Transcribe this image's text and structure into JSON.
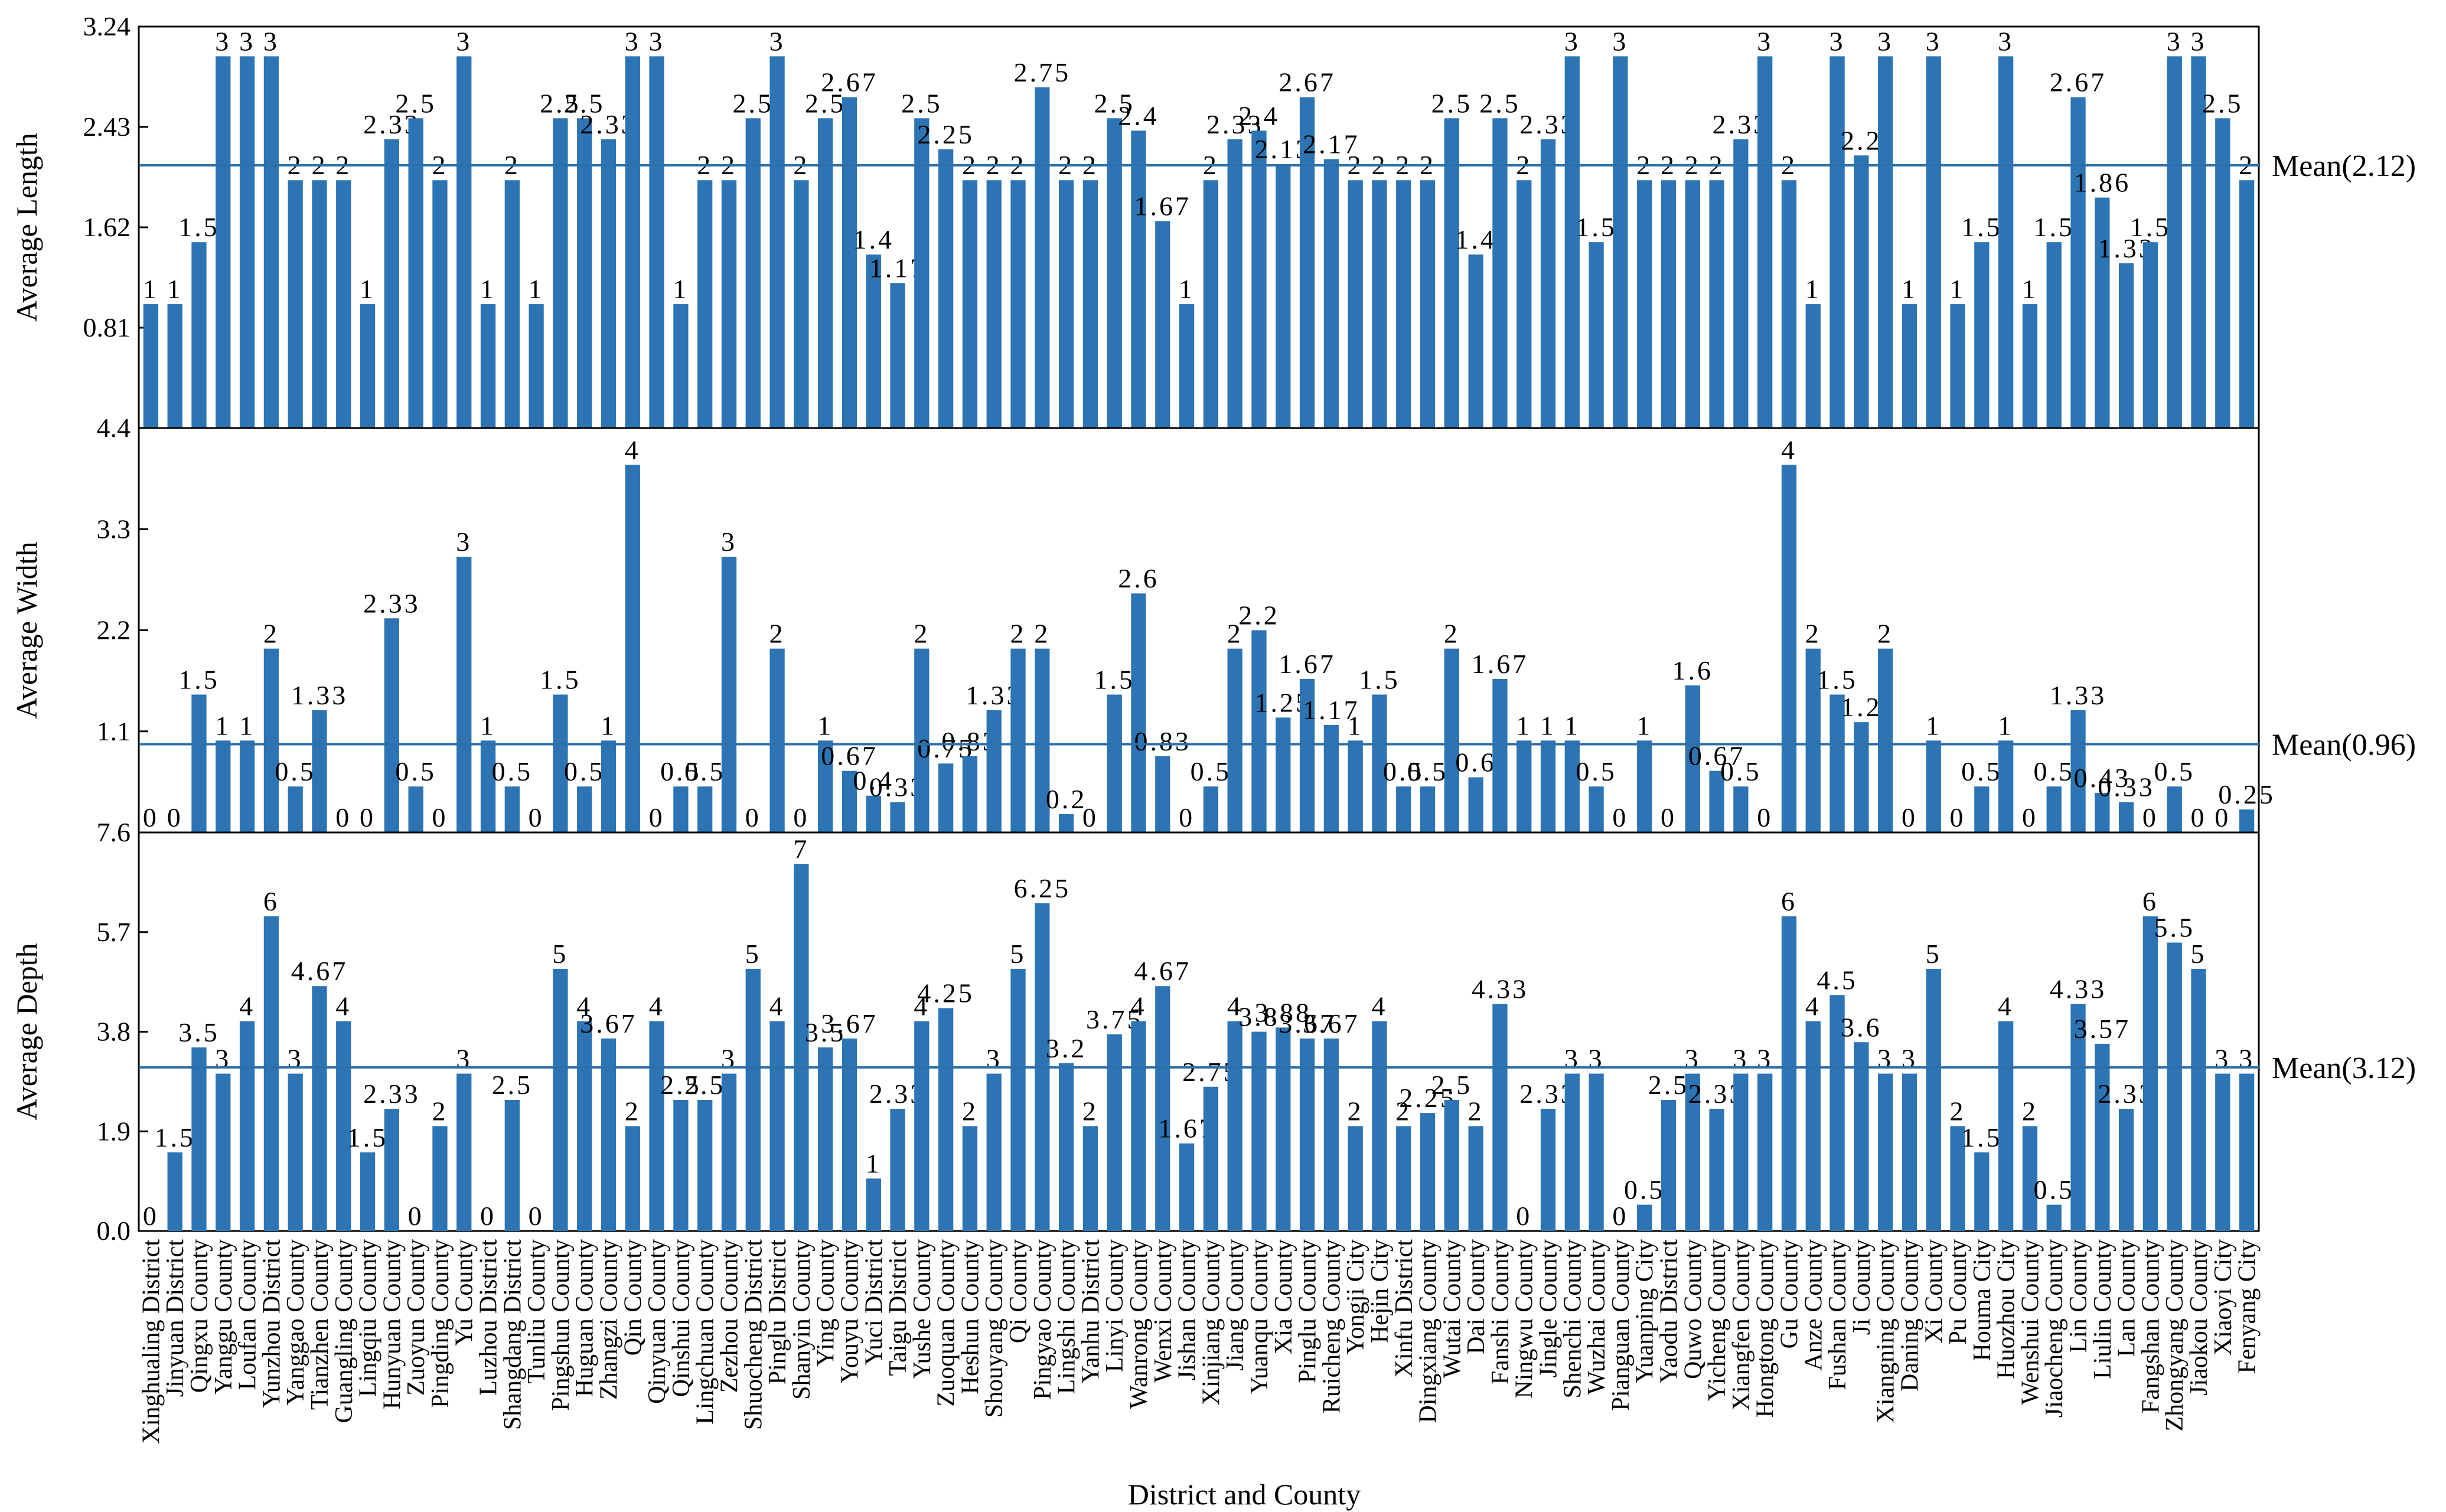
{
  "colors": {
    "bar": "#2c74b4",
    "mean_line": "#2f6fa8"
  },
  "chart_data": {
    "type": "bar",
    "xlabel": "District and County",
    "categories": [
      "Xinghualing District",
      "Jinyuan District",
      "Qingxu County",
      "Yanggu County",
      "Loufan County",
      "Yunzhou District",
      "Yanggao County",
      "Tianzhen County",
      "Guangling County",
      "Lingqiu County",
      "Hunyuan County",
      "Zuoyun County",
      "Pingding County",
      "Yu County",
      "Luzhou District",
      "Shangdang District",
      "Tunliu County",
      "Pingshun County",
      "Huguan County",
      "Zhangzi County",
      "Qin County",
      "Qinyuan County",
      "Qinshui County",
      "Lingchuan County",
      "Zezhou County",
      "Shuocheng District",
      "Pinglu District",
      "Shanyin County",
      "Ying County",
      "Youyu County",
      "Yuci District",
      "Taigu District",
      "Yushe County",
      "Zuoquan County",
      "Heshun County",
      "Shouyang County",
      "Qi County",
      "Pingyao County",
      "Lingshi County",
      "Yanhu District",
      "Linyi County",
      "Wanrong County",
      "Wenxi County",
      "Jishan County",
      "Xinjiang County",
      "Jiang County",
      "Yuanqu County",
      "Xia County",
      "Pinglu County",
      "Ruicheng County",
      "Yongji City",
      "Hejin City",
      "Xinfu District",
      "Dingxiang County",
      "Wutai County",
      "Dai County",
      "Fanshi County",
      "Ningwu County",
      "Jingle County",
      "Shenchi County",
      "Wuzhai County",
      "Pianguan County",
      "Yuanping City",
      "Yaodu District",
      "Quwo County",
      "Yicheng County",
      "Xiangfen County",
      "Hongtong County",
      "Gu County",
      "Anze County",
      "Fushan County",
      "Ji County",
      "Xiangning County",
      "Daning County",
      "Xi County",
      "Pu County",
      "Houma City",
      "Huozhou City",
      "Wenshui County",
      "Jiaocheng County",
      "Lin County",
      "Liulin County",
      "Lan County",
      "Fangshan County",
      "Zhongyang County",
      "Jiaokou County",
      "Xiaoyi City",
      "Fenyang City"
    ],
    "panels": [
      {
        "name": "length",
        "ylabel": "Average Length",
        "ylim": [
          0,
          3.24
        ],
        "yticks": [
          "0.81",
          "1.62",
          "2.43",
          "3.24"
        ],
        "mean": 2.12,
        "mean_label": "Mean(2.12)",
        "values": [
          1,
          1,
          1.5,
          3,
          3,
          3,
          2,
          2,
          2,
          1,
          2.33,
          2.5,
          2,
          3,
          1,
          2,
          1,
          2.5,
          2.5,
          2.33,
          3,
          3,
          1,
          2,
          2,
          2.5,
          3,
          2,
          2.5,
          2.67,
          1.4,
          1.17,
          2.5,
          2.25,
          2,
          2,
          2,
          2.75,
          2,
          2,
          2.5,
          2.4,
          1.67,
          1,
          2,
          2.33,
          2.4,
          2.13,
          2.67,
          2.17,
          2,
          2,
          2,
          2,
          2.5,
          1.4,
          2.5,
          2,
          2.33,
          3,
          1.5,
          3,
          2,
          2,
          2,
          2,
          2.33,
          3,
          2,
          1,
          3,
          2.2,
          3,
          1,
          3,
          1,
          1.5,
          3,
          1,
          1.5,
          2.67,
          1.86,
          1.33,
          1.5,
          3,
          3,
          2.5,
          2
        ],
        "labels": [
          "1",
          "1",
          "1.5",
          "3",
          "3",
          "3",
          "2",
          "2",
          "2",
          "1",
          "2.33",
          "2.5",
          "2",
          "3",
          "1",
          "2",
          "1",
          "2.5",
          "2.5",
          "2.33",
          "3",
          "3",
          "1",
          "2",
          "2",
          "2.5",
          "3",
          "2",
          "2.5",
          "2.67",
          "1.4",
          "1.17",
          "2.5",
          "2.25",
          "2",
          "2",
          "2",
          "2.75",
          "2",
          "2",
          "2.5",
          "2.4",
          "1.67",
          "1",
          "2",
          "2.33",
          "2.4",
          "2.13",
          "2.67",
          "2.17",
          "2",
          "2",
          "2",
          "2",
          "2.5",
          "1.4",
          "2.5",
          "2",
          "2.33",
          "3",
          "1.5",
          "3",
          "2",
          "2",
          "2",
          "2",
          "2.33",
          "3",
          "2",
          "1",
          "3",
          "2.2",
          "3",
          "1",
          "3",
          "1",
          "1.5",
          "3",
          "1",
          "1.5",
          "2.67",
          "1.86",
          "1.33",
          "1.5",
          "3",
          "3",
          "2.5",
          "2"
        ]
      },
      {
        "name": "width",
        "ylabel": "Average Width",
        "ylim": [
          0,
          4.4
        ],
        "yticks": [
          "1.1",
          "2.2",
          "3.3",
          "4.4"
        ],
        "mean": 0.96,
        "mean_label": "Mean(0.96)",
        "values": [
          0,
          0,
          1.5,
          1,
          1,
          2,
          0.5,
          1.33,
          0,
          0,
          2.33,
          0.5,
          0,
          3,
          1,
          0.5,
          0,
          1.5,
          0.5,
          1,
          4,
          0,
          0.5,
          0.5,
          3,
          0,
          2,
          0,
          1,
          0.67,
          0.4,
          0.33,
          2,
          0.75,
          0.83,
          1.33,
          2,
          2,
          0.2,
          0,
          1.5,
          2.6,
          0.83,
          0,
          0.5,
          2,
          2.2,
          1.25,
          1.67,
          1.17,
          1,
          1.5,
          0.5,
          0.5,
          2,
          0.6,
          1.67,
          1,
          1,
          1,
          0.5,
          0,
          1,
          0,
          1.6,
          0.67,
          0.5,
          0,
          4,
          2,
          1.5,
          1.2,
          2,
          0,
          1,
          0,
          0.5,
          1,
          0,
          0.5,
          1.33,
          0.43,
          0.33,
          0,
          0.5,
          0,
          0,
          0.25
        ],
        "labels": [
          "0",
          "0",
          "1.5",
          "1",
          "1",
          "2",
          "0.5",
          "1.33",
          "0",
          "0",
          "2.33",
          "0.5",
          "0",
          "3",
          "1",
          "0.5",
          "0",
          "1.5",
          "0.5",
          "1",
          "4",
          "0",
          "0.5",
          "0.5",
          "3",
          "0",
          "2",
          "0",
          "1",
          "0.67",
          "0.4",
          "0.33",
          "2",
          "0.75",
          "0.83",
          "1.33",
          "2",
          "2",
          "0.2",
          "0",
          "1.5",
          "2.6",
          "0.83",
          "0",
          "0.5",
          "2",
          "2.2",
          "1.25",
          "1.67",
          "1.17",
          "1",
          "1.5",
          "0.5",
          "0.5",
          "2",
          "0.6",
          "1.67",
          "1",
          "1",
          "1",
          "0.5",
          "0",
          "1",
          "0",
          "1.6",
          "0.67",
          "0.5",
          "0",
          "4",
          "2",
          "1.5",
          "1.2",
          "2",
          "0",
          "1",
          "0",
          "0.5",
          "1",
          "0",
          "0.5",
          "1.33",
          "0.43",
          "0.33",
          "0",
          "0.5",
          "0",
          "0",
          "0.25"
        ]
      },
      {
        "name": "depth",
        "ylabel": "Average Depth",
        "ylim": [
          0,
          7.6
        ],
        "yticks": [
          "0.0",
          "1.9",
          "3.8",
          "5.7",
          "7.6"
        ],
        "mean": 3.12,
        "mean_label": "Mean(3.12)",
        "values": [
          0,
          1.5,
          3.5,
          3,
          4,
          6,
          3,
          4.67,
          4,
          1.5,
          2.33,
          0,
          2,
          3,
          0,
          2.5,
          0,
          5,
          4,
          3.67,
          2,
          4,
          2.5,
          2.5,
          3,
          5,
          4,
          7,
          3.5,
          3.67,
          1,
          2.33,
          4,
          4.25,
          2,
          3,
          5,
          6.25,
          3.2,
          2,
          3.75,
          4,
          4.67,
          1.67,
          2.75,
          4,
          3.8,
          3.88,
          3.67,
          3.67,
          2,
          4,
          2,
          2.25,
          2.5,
          2,
          4.33,
          0,
          2.33,
          3,
          3,
          0,
          0.5,
          2.5,
          3,
          2.33,
          3,
          3,
          6,
          4,
          4.5,
          3.6,
          3,
          3,
          5,
          2,
          1.5,
          4,
          2,
          0.5,
          4.33,
          3.57,
          2.33,
          6,
          5.5,
          5,
          3,
          3
        ],
        "labels": [
          "0",
          "1.5",
          "3.5",
          "3",
          "4",
          "6",
          "3",
          "4.67",
          "4",
          "1.5",
          "2.33",
          "0",
          "2",
          "3",
          "0",
          "2.5",
          "0",
          "5",
          "4",
          "3.67",
          "2",
          "4",
          "2.5",
          "2.5",
          "3",
          "5",
          "4",
          "7",
          "3.5",
          "3.67",
          "1",
          "2.33",
          "4",
          "4.25",
          "2",
          "3",
          "5",
          "6.25",
          "3.2",
          "2",
          "3.75",
          "4",
          "4.67",
          "1.67",
          "2.75",
          "4",
          "3.8",
          "3.88",
          "3.67",
          "3.67",
          "2",
          "4",
          "2",
          "2.25",
          "2.5",
          "2",
          "4.33",
          "0",
          "2.33",
          "3",
          "3",
          "0",
          "0.5",
          "2.5",
          "3",
          "2.33",
          "3",
          "3",
          "6",
          "4",
          "4.5",
          "3.6",
          "3",
          "3",
          "5",
          "2",
          "1.5",
          "4",
          "2",
          "0.5",
          "4.33",
          "3.57",
          "2.33",
          "6",
          "5.5",
          "5",
          "3",
          "3"
        ]
      }
    ]
  }
}
